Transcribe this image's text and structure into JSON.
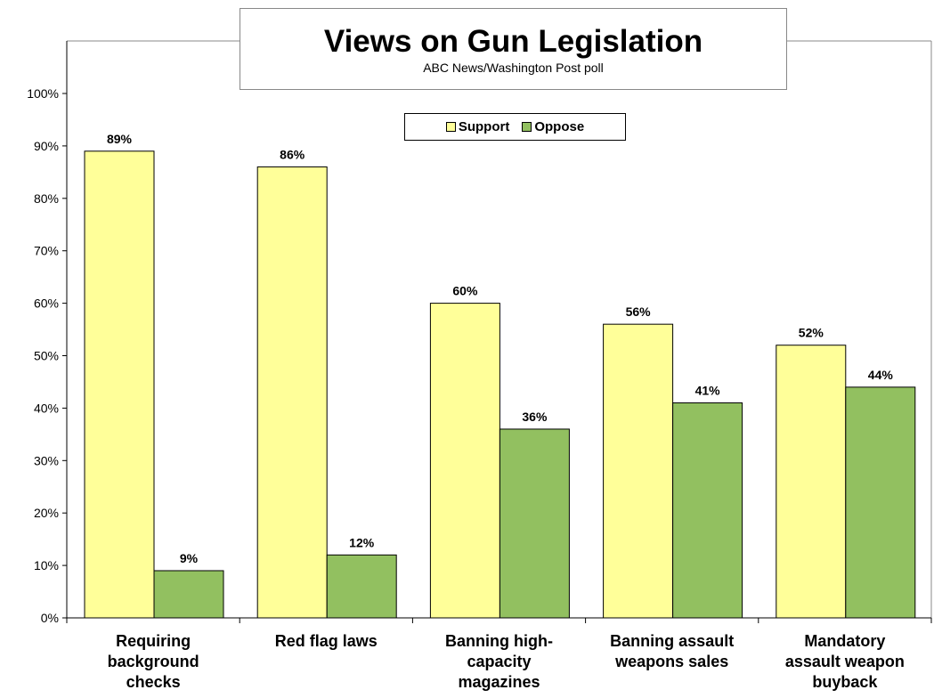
{
  "chart_data": {
    "type": "bar",
    "title": "Views on Gun Legislation",
    "subtitle": "ABC News/Washington Post poll",
    "categories": [
      [
        "Requiring",
        "background",
        "checks"
      ],
      [
        "Red flag laws"
      ],
      [
        "Banning high-",
        "capacity",
        "magazines"
      ],
      [
        "Banning assault",
        "weapons sales"
      ],
      [
        "Mandatory",
        "assault weapon",
        "buyback"
      ]
    ],
    "series": [
      {
        "name": "Support",
        "color": "#ffff99",
        "values": [
          89,
          86,
          60,
          56,
          52
        ]
      },
      {
        "name": "Oppose",
        "color": "#92c060",
        "values": [
          9,
          12,
          36,
          41,
          44
        ]
      }
    ],
    "ylim": [
      0,
      100
    ],
    "yticks": [
      "0%",
      "10%",
      "20%",
      "30%",
      "40%",
      "50%",
      "60%",
      "70%",
      "80%",
      "90%",
      "100%"
    ],
    "value_suffix": "%",
    "legend_position": "top-center",
    "grid": false
  }
}
